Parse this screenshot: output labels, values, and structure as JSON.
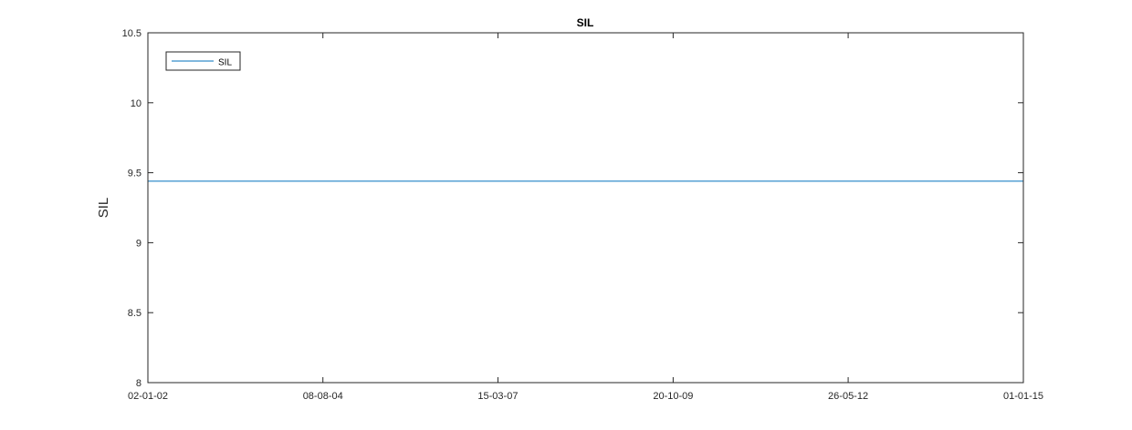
{
  "chart_data": {
    "type": "line",
    "title": "SIL",
    "xlabel": "",
    "ylabel": "SIL",
    "x_axis": {
      "type": "date",
      "range": [
        "2002-01-02",
        "2015-01-01"
      ],
      "ticks": [
        "2002-01-02",
        "2004-08-08",
        "2007-03-15",
        "2009-10-20",
        "2012-05-26",
        "2015-01-01"
      ],
      "tick_labels": [
        "02-01-02",
        "08-08-04",
        "15-03-07",
        "20-10-09",
        "26-05-12",
        "01-01-15"
      ]
    },
    "y_axis": {
      "range": [
        8,
        10.5
      ],
      "ticks": [
        8,
        8.5,
        9,
        9.5,
        10,
        10.5
      ],
      "tick_labels": [
        "8",
        "8.5",
        "9",
        "9.5",
        "10",
        "10.5"
      ]
    },
    "series": [
      {
        "name": "SIL",
        "color": "#0072bd",
        "x": [
          "2002-01-02",
          "2015-01-01"
        ],
        "y": [
          9.44,
          9.44
        ]
      }
    ],
    "legend": {
      "position": "top-left",
      "entries": [
        "SIL"
      ]
    },
    "grid": false,
    "box": true
  }
}
